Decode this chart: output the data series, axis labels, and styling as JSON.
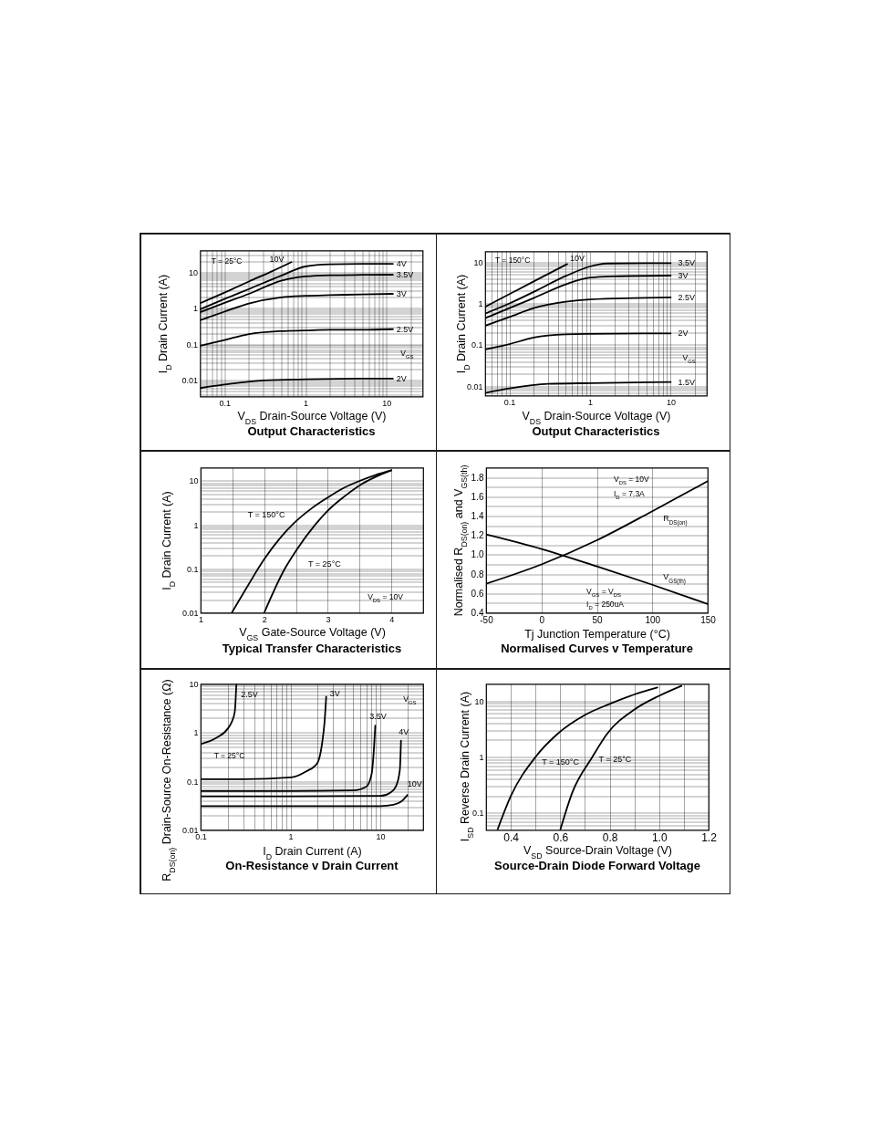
{
  "chart_data": [
    {
      "type": "line",
      "title": "Output Characteristics",
      "xlabel": "V$_{DS}$ Drain-Source Voltage (V)",
      "ylabel": "I$_{D}$ Drain Current (A)",
      "annotations": [
        "T = 25°C",
        "V$_{GS}$"
      ],
      "log": "xy",
      "grid": true,
      "xlim": [
        0.05,
        28
      ],
      "xticks": [
        {
          "value": 0.06,
          "label": null
        },
        {
          "value": 0.07,
          "label": null
        },
        {
          "value": 0.08,
          "label": null
        },
        {
          "value": 0.09,
          "label": null
        },
        0.1,
        {
          "value": 0.2,
          "label": null
        },
        {
          "value": 0.3,
          "label": null
        },
        {
          "value": 0.4,
          "label": null
        },
        {
          "value": 0.5,
          "label": null
        },
        {
          "value": 0.6,
          "label": null
        },
        {
          "value": 0.7,
          "label": null
        },
        {
          "value": 0.8,
          "label": null
        },
        {
          "value": 0.9,
          "label": null
        },
        1,
        {
          "value": 2,
          "label": null
        },
        {
          "value": 3,
          "label": null
        },
        {
          "value": 4,
          "label": null
        },
        {
          "value": 5,
          "label": null
        },
        {
          "value": 6,
          "label": null
        },
        {
          "value": 7,
          "label": null
        },
        {
          "value": 8,
          "label": null
        },
        {
          "value": 9,
          "label": null
        },
        10,
        {
          "value": 20,
          "label": null
        }
      ],
      "ylim": [
        0.0035,
        40
      ],
      "yticks": [
        {
          "value": 0.004,
          "label": null
        },
        {
          "value": 0.005,
          "label": null
        },
        {
          "value": 0.006,
          "label": null
        },
        {
          "value": 0.007,
          "label": null
        },
        {
          "value": 0.008,
          "label": null
        },
        {
          "value": 0.009,
          "label": null
        },
        0.01,
        {
          "value": 0.02,
          "label": null
        },
        {
          "value": 0.03,
          "label": null
        },
        {
          "value": 0.04,
          "label": null
        },
        {
          "value": 0.05,
          "label": null
        },
        {
          "value": 0.06,
          "label": null
        },
        {
          "value": 0.07,
          "label": null
        },
        {
          "value": 0.08,
          "label": null
        },
        {
          "value": 0.09,
          "label": null
        },
        0.1,
        {
          "value": 0.2,
          "label": null
        },
        {
          "value": 0.3,
          "label": null
        },
        {
          "value": 0.4,
          "label": null
        },
        {
          "value": 0.5,
          "label": null
        },
        {
          "value": 0.6,
          "label": null
        },
        {
          "value": 0.7,
          "label": null
        },
        {
          "value": 0.8,
          "label": null
        },
        {
          "value": 0.9,
          "label": null
        },
        1,
        {
          "value": 2,
          "label": null
        },
        {
          "value": 3,
          "label": null
        },
        {
          "value": 4,
          "label": null
        },
        {
          "value": 5,
          "label": null
        },
        {
          "value": 6,
          "label": null
        },
        {
          "value": 7,
          "label": null
        },
        {
          "value": 8,
          "label": null
        },
        {
          "value": 9,
          "label": null
        },
        10,
        {
          "value": 20,
          "label": null
        },
        {
          "value": 30,
          "label": null
        }
      ],
      "series": [
        {
          "name": "10V",
          "color": "#000000",
          "x": [
            0.05,
            0.1,
            0.2,
            0.4,
            0.67
          ],
          "values": [
            1.37,
            2.7,
            5.5,
            11,
            19
          ]
        },
        {
          "name": "4V",
          "color": "#000000",
          "x": [
            0.05,
            0.1,
            0.2,
            0.5,
            1,
            2,
            5,
            12
          ],
          "values": [
            0.93,
            1.8,
            3.4,
            8,
            14.4,
            16.5,
            17,
            17
          ]
        },
        {
          "name": "3.5V",
          "color": "#000000",
          "x": [
            0.05,
            0.1,
            0.2,
            0.5,
            1,
            2,
            5,
            12
          ],
          "values": [
            0.77,
            1.4,
            2.5,
            5.8,
            7.6,
            8.2,
            8.4,
            8.5
          ]
        },
        {
          "name": "3V",
          "color": "#000000",
          "x": [
            0.05,
            0.1,
            0.2,
            0.5,
            1,
            2,
            5,
            12
          ],
          "values": [
            0.46,
            0.8,
            1.35,
            2.0,
            2.2,
            2.3,
            2.4,
            2.5
          ]
        },
        {
          "name": "2.5V",
          "color": "#000000",
          "x": [
            0.05,
            0.1,
            0.2,
            0.5,
            1,
            2,
            5,
            12
          ],
          "values": [
            0.09,
            0.13,
            0.19,
            0.23,
            0.24,
            0.25,
            0.25,
            0.26
          ]
        },
        {
          "name": "2V",
          "color": "#000000",
          "x": [
            0.05,
            0.1,
            0.3,
            1,
            5,
            12
          ],
          "values": [
            0.006,
            0.0075,
            0.0098,
            0.0105,
            0.011,
            0.011
          ]
        }
      ]
    },
    {
      "type": "line",
      "title": "Output Characteristics",
      "xlabel": "V$_{DS}$ Drain-Source Voltage (V)",
      "ylabel": "I$_{D}$ Drain Current (A)",
      "annotations": [
        "T = 150°C",
        "V$_{GS}$"
      ],
      "log": "xy",
      "grid": true,
      "xlim": [
        0.05,
        28
      ],
      "xticks": [
        {
          "value": 0.06,
          "label": null
        },
        {
          "value": 0.07,
          "label": null
        },
        {
          "value": 0.08,
          "label": null
        },
        {
          "value": 0.09,
          "label": null
        },
        0.1,
        {
          "value": 0.2,
          "label": null
        },
        {
          "value": 0.3,
          "label": null
        },
        {
          "value": 0.4,
          "label": null
        },
        {
          "value": 0.5,
          "label": null
        },
        {
          "value": 0.6,
          "label": null
        },
        {
          "value": 0.7,
          "label": null
        },
        {
          "value": 0.8,
          "label": null
        },
        {
          "value": 0.9,
          "label": null
        },
        1,
        {
          "value": 2,
          "label": null
        },
        {
          "value": 3,
          "label": null
        },
        {
          "value": 4,
          "label": null
        },
        {
          "value": 5,
          "label": null
        },
        {
          "value": 6,
          "label": null
        },
        {
          "value": 7,
          "label": null
        },
        {
          "value": 8,
          "label": null
        },
        {
          "value": 9,
          "label": null
        },
        10,
        {
          "value": 20,
          "label": null
        }
      ],
      "ylim": [
        0.006,
        18
      ],
      "yticks": [
        {
          "value": 0.007,
          "label": null
        },
        {
          "value": 0.008,
          "label": null
        },
        {
          "value": 0.009,
          "label": null
        },
        0.01,
        {
          "value": 0.02,
          "label": null
        },
        {
          "value": 0.03,
          "label": null
        },
        {
          "value": 0.04,
          "label": null
        },
        {
          "value": 0.05,
          "label": null
        },
        {
          "value": 0.06,
          "label": null
        },
        {
          "value": 0.07,
          "label": null
        },
        {
          "value": 0.08,
          "label": null
        },
        {
          "value": 0.09,
          "label": null
        },
        0.1,
        {
          "value": 0.2,
          "label": null
        },
        {
          "value": 0.3,
          "label": null
        },
        {
          "value": 0.4,
          "label": null
        },
        {
          "value": 0.5,
          "label": null
        },
        {
          "value": 0.6,
          "label": null
        },
        {
          "value": 0.7,
          "label": null
        },
        {
          "value": 0.8,
          "label": null
        },
        {
          "value": 0.9,
          "label": null
        },
        1,
        {
          "value": 2,
          "label": null
        },
        {
          "value": 3,
          "label": null
        },
        {
          "value": 4,
          "label": null
        },
        {
          "value": 5,
          "label": null
        },
        {
          "value": 6,
          "label": null
        },
        {
          "value": 7,
          "label": null
        },
        {
          "value": 8,
          "label": null
        },
        {
          "value": 9,
          "label": null
        },
        10
      ],
      "series": [
        {
          "name": "10V",
          "color": "#000000",
          "x": [
            0.05,
            0.1,
            0.2,
            0.52
          ],
          "values": [
            0.83,
            1.68,
            3.4,
            8.9
          ]
        },
        {
          "name": "3.5V",
          "color": "#000000",
          "x": [
            0.05,
            0.1,
            0.2,
            0.5,
            1,
            1.6,
            5,
            10
          ],
          "values": [
            0.57,
            1.0,
            1.9,
            4.6,
            7.8,
            9.2,
            9.4,
            9.4
          ]
        },
        {
          "name": "3V",
          "color": "#000000",
          "x": [
            0.05,
            0.1,
            0.2,
            0.5,
            1,
            2,
            10
          ],
          "values": [
            0.44,
            0.77,
            1.35,
            2.9,
            4.2,
            4.5,
            4.7
          ]
        },
        {
          "name": "2.5V",
          "color": "#000000",
          "x": [
            0.05,
            0.1,
            0.2,
            0.5,
            1,
            10
          ],
          "values": [
            0.29,
            0.47,
            0.77,
            1.1,
            1.25,
            1.4
          ]
        },
        {
          "name": "2V",
          "color": "#000000",
          "x": [
            0.05,
            0.1,
            0.2,
            0.5,
            1,
            10
          ],
          "values": [
            0.078,
            0.105,
            0.15,
            0.18,
            0.185,
            0.19
          ]
        },
        {
          "name": "1.5V",
          "color": "#000000",
          "x": [
            0.05,
            0.1,
            0.3,
            1,
            10
          ],
          "values": [
            0.0069,
            0.0089,
            0.0115,
            0.012,
            0.0127
          ]
        }
      ]
    },
    {
      "type": "line",
      "title": "Typical Transfer Characteristics",
      "xlabel": "V$_{GS}$ Gate-Source Voltage (V)",
      "ylabel": "I$_{D}$ Drain Current (A)",
      "annotations": [
        "V$_{DS}$ = 10V"
      ],
      "log": true,
      "grid": true,
      "xlim": [
        1,
        4.5
      ],
      "xticks": [
        1,
        {
          "value": 1.5,
          "label": null
        },
        2,
        {
          "value": 2.5,
          "label": null
        },
        3,
        {
          "value": 3.5,
          "label": null
        },
        4
      ],
      "ylim": [
        0.01,
        20
      ],
      "yticks": [
        0.01,
        {
          "value": 0.02,
          "label": null
        },
        {
          "value": 0.03,
          "label": null
        },
        {
          "value": 0.04,
          "label": null
        },
        {
          "value": 0.05,
          "label": null
        },
        {
          "value": 0.06,
          "label": null
        },
        {
          "value": 0.07,
          "label": null
        },
        {
          "value": 0.08,
          "label": null
        },
        {
          "value": 0.09,
          "label": null
        },
        0.1,
        {
          "value": 0.2,
          "label": null
        },
        {
          "value": 0.3,
          "label": null
        },
        {
          "value": 0.4,
          "label": null
        },
        {
          "value": 0.5,
          "label": null
        },
        {
          "value": 0.6,
          "label": null
        },
        {
          "value": 0.7,
          "label": null
        },
        {
          "value": 0.8,
          "label": null
        },
        {
          "value": 0.9,
          "label": null
        },
        1,
        {
          "value": 2,
          "label": null
        },
        {
          "value": 3,
          "label": null
        },
        {
          "value": 4,
          "label": null
        },
        {
          "value": 5,
          "label": null
        },
        {
          "value": 6,
          "label": null
        },
        {
          "value": 7,
          "label": null
        },
        {
          "value": 8,
          "label": null
        },
        {
          "value": 9,
          "label": null
        },
        10
      ],
      "series": [
        {
          "name": "T = 150°C",
          "color": "#000000",
          "x": [
            1.49,
            1.75,
            2.0,
            2.25,
            2.47,
            2.75,
            3.0,
            3.25,
            3.5,
            3.75,
            4.0
          ],
          "values": [
            0.01,
            0.043,
            0.165,
            0.5,
            1.1,
            2.4,
            4.2,
            6.9,
            10,
            13.6,
            17.4
          ]
        },
        {
          "name": "T = 25°C",
          "color": "#000000",
          "x": [
            2.0,
            2.32,
            2.51,
            2.8,
            3.0,
            3.25,
            3.5,
            3.75,
            4.0
          ],
          "values": [
            0.01,
            0.098,
            0.27,
            1.0,
            2.1,
            4.3,
            7.9,
            12.3,
            17.4
          ]
        }
      ]
    },
    {
      "type": "line",
      "title": "Normalised Curves v Temperature",
      "xlabel": "Tj Junction Temperature (°C)",
      "ylabel": "Normalised R$_{DS(on)}$ and V$_{GS(th)}$",
      "annotations": [
        "V$_{DS}$ = 10V",
        "I$_{D}$ = 7.3A",
        "V$_{GS}$ = V$_{DS}$",
        "I$_{D}$ = 250uA"
      ],
      "grid": true,
      "xlim": [
        -50,
        150
      ],
      "xticks": [
        -50,
        0,
        50,
        100,
        150
      ],
      "ylim": [
        0.4,
        1.9
      ],
      "yticks": [
        0.4,
        {
          "value": 0.5,
          "label": null
        },
        0.6,
        {
          "value": 0.7,
          "label": null
        },
        0.8,
        {
          "value": 0.9,
          "label": null
        },
        {
          "value": 1,
          "label": "1.0"
        },
        {
          "value": 1.1,
          "label": null
        },
        1.2,
        {
          "value": 1.3,
          "label": null
        },
        1.4,
        {
          "value": 1.5,
          "label": null
        },
        1.6,
        {
          "value": 1.7,
          "label": null
        },
        1.8
      ],
      "series": [
        {
          "name": "R$_{DS(on)}$",
          "color": "#000000",
          "x": [
            -50,
            0,
            50,
            100,
            150
          ],
          "values": [
            0.7,
            0.9,
            1.15,
            1.45,
            1.76
          ]
        },
        {
          "name": "V$_{GS(th)}$",
          "color": "#000000",
          "x": [
            -50,
            0,
            50,
            100,
            150
          ],
          "values": [
            1.21,
            1.06,
            0.88,
            0.69,
            0.49
          ]
        }
      ]
    },
    {
      "type": "line",
      "title": "On-Resistance v Drain Current",
      "xlabel": "I$_{D}$ Drain Current (A)",
      "ylabel": "R$_{DS(on)}$ Drain-Source On-Resistance (Ω)",
      "annotations": [
        "V$_{GS}$",
        "T = 25°C"
      ],
      "log": "xy",
      "grid": true,
      "xlim": [
        0.1,
        30
      ],
      "xticks": [
        0.1,
        {
          "value": 0.2,
          "label": null
        },
        {
          "value": 0.3,
          "label": null
        },
        {
          "value": 0.4,
          "label": null
        },
        {
          "value": 0.5,
          "label": null
        },
        {
          "value": 0.6,
          "label": null
        },
        {
          "value": 0.7,
          "label": null
        },
        {
          "value": 0.8,
          "label": null
        },
        {
          "value": 0.9,
          "label": null
        },
        1,
        {
          "value": 2,
          "label": null
        },
        {
          "value": 3,
          "label": null
        },
        {
          "value": 4,
          "label": null
        },
        {
          "value": 5,
          "label": null
        },
        {
          "value": 6,
          "label": null
        },
        {
          "value": 7,
          "label": null
        },
        {
          "value": 8,
          "label": null
        },
        {
          "value": 9,
          "label": null
        },
        10,
        {
          "value": 20,
          "label": null
        }
      ],
      "ylim": [
        0.01,
        10
      ],
      "yticks": [
        0.01,
        {
          "value": 0.02,
          "label": null
        },
        {
          "value": 0.03,
          "label": null
        },
        {
          "value": 0.04,
          "label": null
        },
        {
          "value": 0.05,
          "label": null
        },
        {
          "value": 0.06,
          "label": null
        },
        {
          "value": 0.07,
          "label": null
        },
        {
          "value": 0.08,
          "label": null
        },
        {
          "value": 0.09,
          "label": null
        },
        0.1,
        {
          "value": 0.2,
          "label": null
        },
        {
          "value": 0.3,
          "label": null
        },
        {
          "value": 0.4,
          "label": null
        },
        {
          "value": 0.5,
          "label": null
        },
        {
          "value": 0.6,
          "label": null
        },
        {
          "value": 0.7,
          "label": null
        },
        {
          "value": 0.8,
          "label": null
        },
        {
          "value": 0.9,
          "label": null
        },
        1,
        {
          "value": 2,
          "label": null
        },
        {
          "value": 3,
          "label": null
        },
        {
          "value": 4,
          "label": null
        },
        {
          "value": 5,
          "label": null
        },
        {
          "value": 6,
          "label": null
        },
        {
          "value": 7,
          "label": null
        },
        {
          "value": 8,
          "label": null
        },
        {
          "value": 9,
          "label": null
        },
        10
      ],
      "series": [
        {
          "name": "2.5V",
          "color": "#000000",
          "x": [
            0.1,
            0.15,
            0.2,
            0.22,
            0.24,
            0.25
          ],
          "values": [
            0.58,
            0.78,
            1.2,
            1.6,
            2.7,
            10
          ]
        },
        {
          "name": "3V",
          "color": "#000000",
          "x": [
            0.1,
            0.3,
            1,
            1.5,
            2,
            2.25,
            2.4,
            2.5
          ],
          "values": [
            0.11,
            0.11,
            0.12,
            0.16,
            0.24,
            0.6,
            1.7,
            5.5
          ]
        },
        {
          "name": "3.5V",
          "color": "#000000",
          "x": [
            0.1,
            1,
            5,
            7,
            8,
            8.5,
            8.8
          ],
          "values": [
            0.063,
            0.063,
            0.065,
            0.078,
            0.14,
            0.47,
            1.4
          ]
        },
        {
          "name": "4V",
          "color": "#000000",
          "x": [
            0.1,
            1,
            10,
            13,
            15,
            16.5,
            17
          ],
          "values": [
            0.049,
            0.049,
            0.05,
            0.059,
            0.08,
            0.17,
            0.68
          ]
        },
        {
          "name": "10V",
          "color": "#000000",
          "x": [
            0.1,
            10,
            14,
            17,
            20
          ],
          "values": [
            0.031,
            0.031,
            0.033,
            0.038,
            0.052
          ]
        }
      ]
    },
    {
      "type": "line",
      "title": "Source-Drain Diode Forward Voltage",
      "xlabel": "V$_{SD}$ Source-Drain Voltage (V)",
      "ylabel": "I$_{SD}$ Reverse Drain Current (A)",
      "log": true,
      "grid": true,
      "xlim": [
        0.3,
        1.2
      ],
      "xticks": [
        0.4,
        {
          "value": 0.5,
          "label": null
        },
        0.6,
        {
          "value": 0.7,
          "label": null
        },
        0.8,
        {
          "value": 0.9,
          "label": null
        },
        {
          "value": 1,
          "label": "1.0"
        },
        {
          "value": 1.1,
          "label": null
        },
        1.2
      ],
      "ylim": [
        0.05,
        20
      ],
      "yticks": [
        {
          "value": 0.06,
          "label": null
        },
        {
          "value": 0.07,
          "label": null
        },
        {
          "value": 0.08,
          "label": null
        },
        {
          "value": 0.09,
          "label": null
        },
        0.1,
        {
          "value": 0.2,
          "label": null
        },
        {
          "value": 0.3,
          "label": null
        },
        {
          "value": 0.4,
          "label": null
        },
        {
          "value": 0.5,
          "label": null
        },
        {
          "value": 0.6,
          "label": null
        },
        {
          "value": 0.7,
          "label": null
        },
        {
          "value": 0.8,
          "label": null
        },
        {
          "value": 0.9,
          "label": null
        },
        1,
        {
          "value": 2,
          "label": null
        },
        {
          "value": 3,
          "label": null
        },
        {
          "value": 4,
          "label": null
        },
        {
          "value": 5,
          "label": null
        },
        {
          "value": 6,
          "label": null
        },
        {
          "value": 7,
          "label": null
        },
        {
          "value": 8,
          "label": null
        },
        {
          "value": 9,
          "label": null
        },
        10
      ],
      "series": [
        {
          "name": "T = 25°C",
          "color": "#000000",
          "x": [
            0.6,
            0.65,
            0.73,
            0.79,
            0.9,
            1.0,
            1.09
          ],
          "values": [
            0.05,
            0.24,
            1.0,
            2.6,
            7.0,
            12.3,
            18.5
          ]
        },
        {
          "name": "T = 150°C",
          "color": "#000000",
          "x": [
            0.346,
            0.4,
            0.5,
            0.59,
            0.7,
            0.8,
            0.9,
            0.993
          ],
          "values": [
            0.05,
            0.2,
            1.0,
            2.6,
            5.6,
            8.8,
            13,
            17.3
          ]
        }
      ]
    }
  ]
}
